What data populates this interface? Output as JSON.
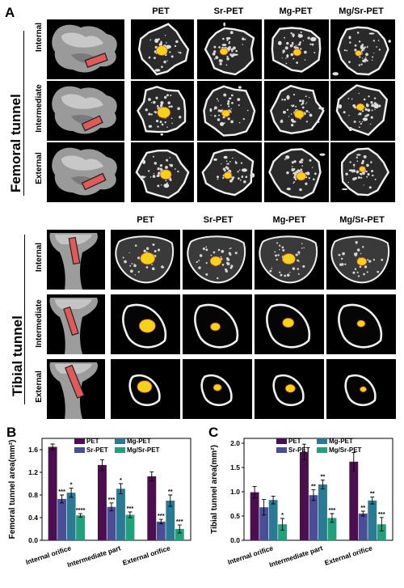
{
  "panel_a": {
    "letter": "A",
    "femoral": {
      "title": "Femoral tunnel",
      "columns": [
        "PET",
        "Sr-PET",
        "Mg-PET",
        "Mg/Sr-PET"
      ],
      "rows": [
        "Internal",
        "Intermediate",
        "External"
      ]
    },
    "tibial": {
      "title": "Tibial tunnel",
      "columns": [
        "PET",
        "Sr-PET",
        "Mg-PET",
        "Mg/Sr-PET"
      ],
      "rows": [
        "Internal",
        "Intermediate",
        "External"
      ]
    }
  },
  "chart_data": [
    {
      "panel": "B",
      "type": "bar",
      "ylabel": "Femoral tunnel area(mm²)",
      "ylim": [
        0,
        1.8
      ],
      "yticks": [
        "0.0",
        "0.4",
        "0.8",
        "1.2",
        "1.6"
      ],
      "categories": [
        "Internal orifice",
        "Intermediate part",
        "External orifice"
      ],
      "legend": [
        "PET",
        "Mg-PET",
        "Sr-PET",
        "Mg/Sr-PET"
      ],
      "series": [
        {
          "name": "PET",
          "color": "#4b0f4f",
          "values": [
            1.65,
            1.33,
            1.13
          ],
          "errors": [
            0.05,
            0.09,
            0.08
          ],
          "marks": [
            "",
            "",
            ""
          ]
        },
        {
          "name": "Sr-PET",
          "color": "#4a4e96",
          "values": [
            0.73,
            0.59,
            0.33
          ],
          "errors": [
            0.07,
            0.07,
            0.04
          ],
          "marks": [
            "***",
            "***",
            "***"
          ]
        },
        {
          "name": "Mg-PET",
          "color": "#2a7a94",
          "values": [
            0.84,
            0.91,
            0.7
          ],
          "errors": [
            0.08,
            0.09,
            0.1
          ],
          "marks": [
            "*",
            "*",
            "**"
          ]
        },
        {
          "name": "Mg/Sr-PET",
          "color": "#22a07c",
          "values": [
            0.44,
            0.45,
            0.2
          ],
          "errors": [
            0.03,
            0.05,
            0.07
          ],
          "marks": [
            "****",
            "***",
            "***"
          ]
        }
      ]
    },
    {
      "panel": "C",
      "type": "bar",
      "ylabel": "Tibial tunnel area(mm²)",
      "ylim": [
        0,
        2.1
      ],
      "yticks": [
        "0.0",
        "0.5",
        "1.0",
        "1.5",
        "2.0"
      ],
      "categories": [
        "Internal orifice",
        "Intermediate part",
        "External orifice"
      ],
      "legend": [
        "PET",
        "Mg-PET",
        "Sr-PET",
        "Mg/Sr-PET"
      ],
      "series": [
        {
          "name": "PET",
          "color": "#4b0f4f",
          "values": [
            0.99,
            1.82,
            1.62
          ],
          "errors": [
            0.12,
            0.16,
            0.19
          ],
          "marks": [
            "",
            "",
            ""
          ]
        },
        {
          "name": "Sr-PET",
          "color": "#4a4e96",
          "values": [
            0.68,
            0.93,
            0.55
          ],
          "errors": [
            0.16,
            0.11,
            0.05
          ],
          "marks": [
            "",
            "**",
            "**"
          ]
        },
        {
          "name": "Mg-PET",
          "color": "#2a7a94",
          "values": [
            0.83,
            1.15,
            0.82
          ],
          "errors": [
            0.08,
            0.09,
            0.07
          ],
          "marks": [
            "",
            "**",
            "**"
          ]
        },
        {
          "name": "Mg/Sr-PET",
          "color": "#22a07c",
          "values": [
            0.33,
            0.46,
            0.33
          ],
          "errors": [
            0.12,
            0.09,
            0.14
          ],
          "marks": [
            "*",
            "***",
            "***"
          ]
        }
      ]
    }
  ]
}
